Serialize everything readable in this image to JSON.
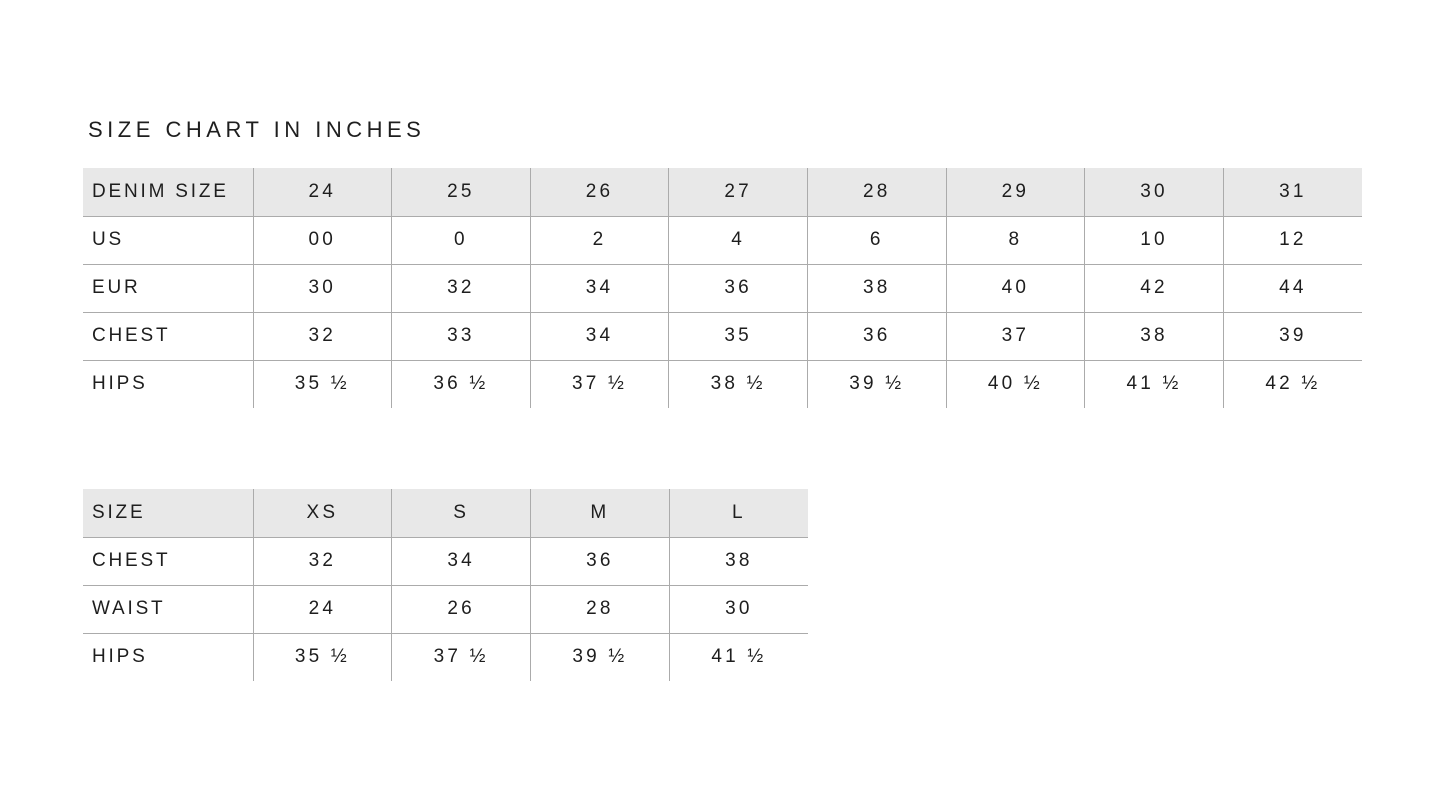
{
  "title": "SIZE CHART IN INCHES",
  "chart_data": [
    {
      "type": "table",
      "name": "denim-size-chart",
      "header_row": [
        "DENIM SIZE",
        "24",
        "25",
        "26",
        "27",
        "28",
        "29",
        "30",
        "31"
      ],
      "rows": [
        [
          "US",
          "00",
          "0",
          "2",
          "4",
          "6",
          "8",
          "10",
          "12"
        ],
        [
          "EUR",
          "30",
          "32",
          "34",
          "36",
          "38",
          "40",
          "42",
          "44"
        ],
        [
          "CHEST",
          "32",
          "33",
          "34",
          "35",
          "36",
          "37",
          "38",
          "39"
        ],
        [
          "HIPS",
          "35 ½",
          "36 ½",
          "37 ½",
          "38 ½",
          "39 ½",
          "40 ½",
          "41 ½",
          "42 ½"
        ]
      ]
    },
    {
      "type": "table",
      "name": "apparel-size-chart",
      "header_row": [
        "SIZE",
        "XS",
        "S",
        "M",
        "L"
      ],
      "rows": [
        [
          "CHEST",
          "32",
          "34",
          "36",
          "38"
        ],
        [
          "WAIST",
          "24",
          "26",
          "28",
          "30"
        ],
        [
          "HIPS",
          "35 ½",
          "37 ½",
          "39 ½",
          "41 ½"
        ]
      ]
    }
  ],
  "colors": {
    "header_bg": "#e8e8e8",
    "grid_line": "#ababab",
    "text": "#1e1e1e",
    "page_bg": "#ffffff"
  }
}
